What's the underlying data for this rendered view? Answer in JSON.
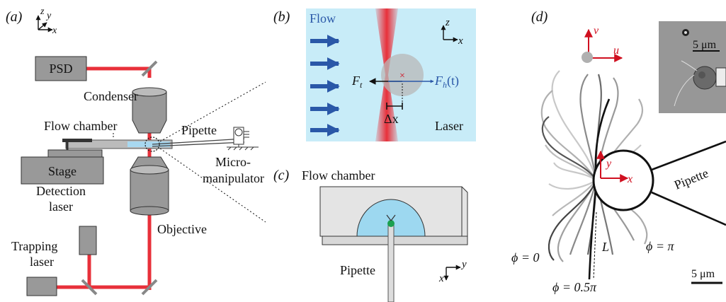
{
  "panel_a": {
    "label": "(a)",
    "axis_z": "z",
    "axis_y": "y",
    "axis_x": "x",
    "psd": "PSD",
    "condenser": "Condenser",
    "flow_chamber": "Flow chamber",
    "pipette": "Pipette",
    "micro_1": "Micro-",
    "micro_2": "manipulator",
    "stage": "Stage",
    "detection_1": "Detection",
    "detection_2": "laser",
    "objective": "Objective",
    "trapping_1": "Trapping",
    "trapping_2": "laser"
  },
  "panel_b": {
    "label": "(b)",
    "flow": "Flow",
    "axis_z": "z",
    "axis_x": "x",
    "ft": "F",
    "ft_sub": "t",
    "fh": "F",
    "fh_sub": "h",
    "fh_arg": "(t)",
    "dx": "Δx",
    "laser": "Laser"
  },
  "panel_c": {
    "label": "(c)",
    "flow_chamber": "Flow chamber",
    "pipette": "Pipette",
    "axis_y": "y",
    "axis_x": "x"
  },
  "panel_d": {
    "label": "(d)",
    "axis_v": "v",
    "axis_u": "u",
    "axis_y": "y",
    "axis_x": "x",
    "scale_inset": "5 μm",
    "pipette": "Pipette",
    "L": "L",
    "phi0": "ϕ = 0",
    "phi05": "ϕ = 0.5π",
    "phipi": "ϕ = π",
    "scale_main": "5 μm"
  },
  "colors": {
    "laser": "#e8303a",
    "flow_bg": "#c8ecf8",
    "flow_arrow": "#2a58a8",
    "coord_red": "#d01020",
    "bead": "#b8b8b8",
    "green_tip": "#1aa050"
  }
}
